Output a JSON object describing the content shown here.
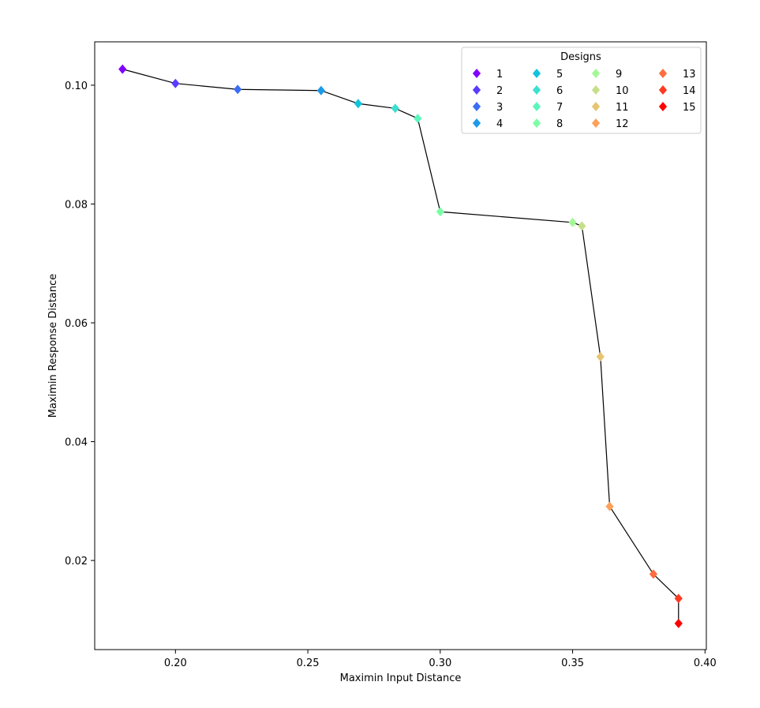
{
  "chart_data": {
    "type": "line",
    "title": "",
    "xlabel": "Maximin Input Distance",
    "ylabel": "Maximin Response Distance",
    "xlim": [
      0.1695,
      0.4005
    ],
    "ylim": [
      0.005,
      0.1073
    ],
    "xticks": [
      "0.20",
      "0.25",
      "0.30",
      "0.35",
      "0.40"
    ],
    "yticks": [
      "0.02",
      "0.04",
      "0.06",
      "0.08",
      "0.10"
    ],
    "grid": false,
    "line_color": "#000000",
    "marker": "diamond",
    "legend": {
      "title": "Designs",
      "placement": "top-right",
      "columns": 4
    },
    "series": [
      {
        "name": "1",
        "x": 0.18,
        "y": 0.1027,
        "color": "#8000ff"
      },
      {
        "name": "2",
        "x": 0.2,
        "y": 0.1003,
        "color": "#5a3cfc"
      },
      {
        "name": "3",
        "x": 0.2235,
        "y": 0.0993,
        "color": "#3a6ef5"
      },
      {
        "name": "4",
        "x": 0.255,
        "y": 0.0991,
        "color": "#1c9ae9"
      },
      {
        "name": "5",
        "x": 0.269,
        "y": 0.0969,
        "color": "#10c4dd"
      },
      {
        "name": "6",
        "x": 0.283,
        "y": 0.0961,
        "color": "#3ae0d0"
      },
      {
        "name": "7",
        "x": 0.2915,
        "y": 0.0944,
        "color": "#5cf5bc"
      },
      {
        "name": "8",
        "x": 0.3,
        "y": 0.0787,
        "color": "#7cfea6"
      },
      {
        "name": "9",
        "x": 0.35,
        "y": 0.0769,
        "color": "#a2f896"
      },
      {
        "name": "10",
        "x": 0.3535,
        "y": 0.0763,
        "color": "#c6e08a"
      },
      {
        "name": "11",
        "x": 0.3605,
        "y": 0.0543,
        "color": "#e6c470"
      },
      {
        "name": "12",
        "x": 0.364,
        "y": 0.0291,
        "color": "#ffa05a"
      },
      {
        "name": "13",
        "x": 0.3805,
        "y": 0.0177,
        "color": "#ff6c3e"
      },
      {
        "name": "14",
        "x": 0.39,
        "y": 0.0136,
        "color": "#ff3a22"
      },
      {
        "name": "15",
        "x": 0.39,
        "y": 0.0094,
        "color": "#ff0000"
      }
    ]
  }
}
